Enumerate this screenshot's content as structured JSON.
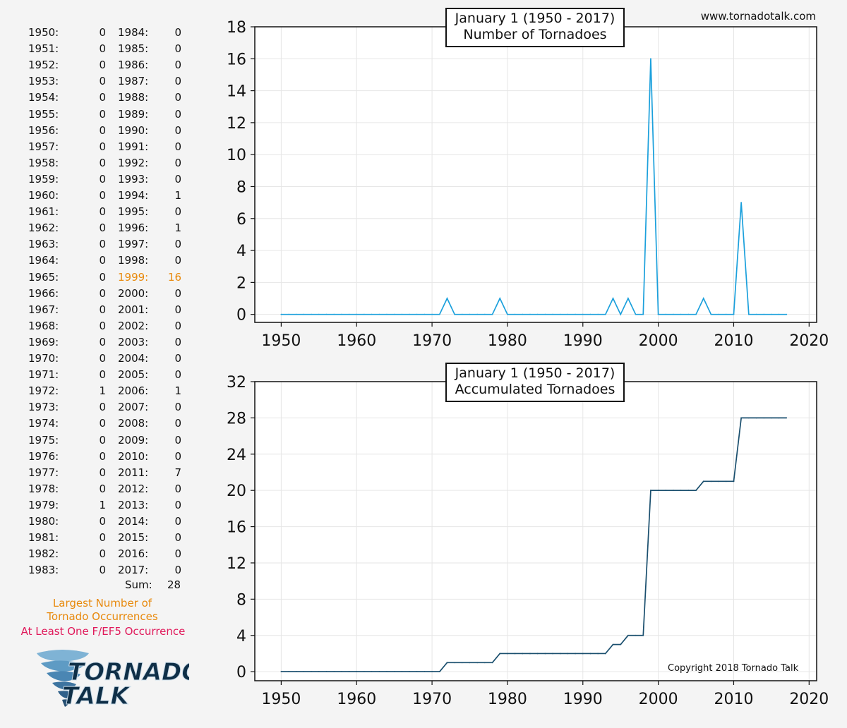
{
  "site_url": "www.tornadotalk.com",
  "copyright": "Copyright 2018 Tornado Talk",
  "year_table": {
    "col1": [
      [
        "1950:",
        "0"
      ],
      [
        "1951:",
        "0"
      ],
      [
        "1952:",
        "0"
      ],
      [
        "1953:",
        "0"
      ],
      [
        "1954:",
        "0"
      ],
      [
        "1955:",
        "0"
      ],
      [
        "1956:",
        "0"
      ],
      [
        "1957:",
        "0"
      ],
      [
        "1958:",
        "0"
      ],
      [
        "1959:",
        "0"
      ],
      [
        "1960:",
        "0"
      ],
      [
        "1961:",
        "0"
      ],
      [
        "1962:",
        "0"
      ],
      [
        "1963:",
        "0"
      ],
      [
        "1964:",
        "0"
      ],
      [
        "1965:",
        "0"
      ],
      [
        "1966:",
        "0"
      ],
      [
        "1967:",
        "0"
      ],
      [
        "1968:",
        "0"
      ],
      [
        "1969:",
        "0"
      ],
      [
        "1970:",
        "0"
      ],
      [
        "1971:",
        "0"
      ],
      [
        "1972:",
        "1"
      ],
      [
        "1973:",
        "0"
      ],
      [
        "1974:",
        "0"
      ],
      [
        "1975:",
        "0"
      ],
      [
        "1976:",
        "0"
      ],
      [
        "1977:",
        "0"
      ],
      [
        "1978:",
        "0"
      ],
      [
        "1979:",
        "1"
      ],
      [
        "1980:",
        "0"
      ],
      [
        "1981:",
        "0"
      ],
      [
        "1982:",
        "0"
      ],
      [
        "1983:",
        "0"
      ]
    ],
    "col2": [
      [
        "1984:",
        "0"
      ],
      [
        "1985:",
        "0"
      ],
      [
        "1986:",
        "0"
      ],
      [
        "1987:",
        "0"
      ],
      [
        "1988:",
        "0"
      ],
      [
        "1989:",
        "0"
      ],
      [
        "1990:",
        "0"
      ],
      [
        "1991:",
        "0"
      ],
      [
        "1992:",
        "0"
      ],
      [
        "1993:",
        "0"
      ],
      [
        "1994:",
        "1"
      ],
      [
        "1995:",
        "0"
      ],
      [
        "1996:",
        "1"
      ],
      [
        "1997:",
        "0"
      ],
      [
        "1998:",
        "0"
      ],
      [
        "1999:",
        "16"
      ],
      [
        "2000:",
        "0"
      ],
      [
        "2001:",
        "0"
      ],
      [
        "2002:",
        "0"
      ],
      [
        "2003:",
        "0"
      ],
      [
        "2004:",
        "0"
      ],
      [
        "2005:",
        "0"
      ],
      [
        "2006:",
        "1"
      ],
      [
        "2007:",
        "0"
      ],
      [
        "2008:",
        "0"
      ],
      [
        "2009:",
        "0"
      ],
      [
        "2010:",
        "0"
      ],
      [
        "2011:",
        "7"
      ],
      [
        "2012:",
        "0"
      ],
      [
        "2013:",
        "0"
      ],
      [
        "2014:",
        "0"
      ],
      [
        "2015:",
        "0"
      ],
      [
        "2016:",
        "0"
      ],
      [
        "2017:",
        "0"
      ]
    ],
    "highlight_year": "1999:",
    "highlight_color": "#e8890c",
    "sum_label": "Sum:",
    "sum_value": "28"
  },
  "legend": {
    "largest": [
      "Largest Number of",
      "Tornado Occurrences"
    ],
    "largest_color": "#e8890c",
    "ef5": "At Least One F/EF5 Occurrence",
    "ef5_color": "#e0195a"
  },
  "logo": {
    "line1": "TORNADO",
    "line2": "TALK",
    "icon": "tornado-funnel-icon"
  },
  "chart_data": [
    {
      "type": "line",
      "title": [
        "January 1 (1950 - 2017)",
        "Number of Tornadoes"
      ],
      "xlabel": "",
      "ylabel": "",
      "xlim": [
        1946.5,
        2021
      ],
      "ylim": [
        -0.5,
        18
      ],
      "xticks": [
        1950,
        1960,
        1970,
        1980,
        1990,
        2000,
        2010,
        2020
      ],
      "yticks": [
        0,
        2,
        4,
        6,
        8,
        10,
        12,
        14,
        16,
        18
      ],
      "grid": true,
      "line_color": "#1ba0dc",
      "x": [
        1950,
        1951,
        1952,
        1953,
        1954,
        1955,
        1956,
        1957,
        1958,
        1959,
        1960,
        1961,
        1962,
        1963,
        1964,
        1965,
        1966,
        1967,
        1968,
        1969,
        1970,
        1971,
        1972,
        1973,
        1974,
        1975,
        1976,
        1977,
        1978,
        1979,
        1980,
        1981,
        1982,
        1983,
        1984,
        1985,
        1986,
        1987,
        1988,
        1989,
        1990,
        1991,
        1992,
        1993,
        1994,
        1995,
        1996,
        1997,
        1998,
        1999,
        2000,
        2001,
        2002,
        2003,
        2004,
        2005,
        2006,
        2007,
        2008,
        2009,
        2010,
        2011,
        2012,
        2013,
        2014,
        2015,
        2016,
        2017
      ],
      "values": [
        0,
        0,
        0,
        0,
        0,
        0,
        0,
        0,
        0,
        0,
        0,
        0,
        0,
        0,
        0,
        0,
        0,
        0,
        0,
        0,
        0,
        0,
        1,
        0,
        0,
        0,
        0,
        0,
        0,
        1,
        0,
        0,
        0,
        0,
        0,
        0,
        0,
        0,
        0,
        0,
        0,
        0,
        0,
        0,
        1,
        0,
        1,
        0,
        0,
        16,
        0,
        0,
        0,
        0,
        0,
        0,
        1,
        0,
        0,
        0,
        0,
        7,
        0,
        0,
        0,
        0,
        0,
        0
      ]
    },
    {
      "type": "line",
      "title": [
        "January 1 (1950 - 2017)",
        "Accumulated Tornadoes"
      ],
      "xlabel": "",
      "ylabel": "",
      "xlim": [
        1946.5,
        2021
      ],
      "ylim": [
        -1,
        32
      ],
      "xticks": [
        1950,
        1960,
        1970,
        1980,
        1990,
        2000,
        2010,
        2020
      ],
      "yticks": [
        0,
        4,
        8,
        12,
        16,
        20,
        24,
        28,
        32
      ],
      "grid": true,
      "line_color": "#1a4f6e",
      "x": [
        1950,
        1951,
        1952,
        1953,
        1954,
        1955,
        1956,
        1957,
        1958,
        1959,
        1960,
        1961,
        1962,
        1963,
        1964,
        1965,
        1966,
        1967,
        1968,
        1969,
        1970,
        1971,
        1972,
        1973,
        1974,
        1975,
        1976,
        1977,
        1978,
        1979,
        1980,
        1981,
        1982,
        1983,
        1984,
        1985,
        1986,
        1987,
        1988,
        1989,
        1990,
        1991,
        1992,
        1993,
        1994,
        1995,
        1996,
        1997,
        1998,
        1999,
        2000,
        2001,
        2002,
        2003,
        2004,
        2005,
        2006,
        2007,
        2008,
        2009,
        2010,
        2011,
        2012,
        2013,
        2014,
        2015,
        2016,
        2017
      ],
      "values": [
        0,
        0,
        0,
        0,
        0,
        0,
        0,
        0,
        0,
        0,
        0,
        0,
        0,
        0,
        0,
        0,
        0,
        0,
        0,
        0,
        0,
        0,
        1,
        1,
        1,
        1,
        1,
        1,
        1,
        2,
        2,
        2,
        2,
        2,
        2,
        2,
        2,
        2,
        2,
        2,
        2,
        2,
        2,
        2,
        3,
        3,
        4,
        4,
        4,
        20,
        20,
        20,
        20,
        20,
        20,
        20,
        21,
        21,
        21,
        21,
        21,
        28,
        28,
        28,
        28,
        28,
        28,
        28
      ]
    }
  ]
}
